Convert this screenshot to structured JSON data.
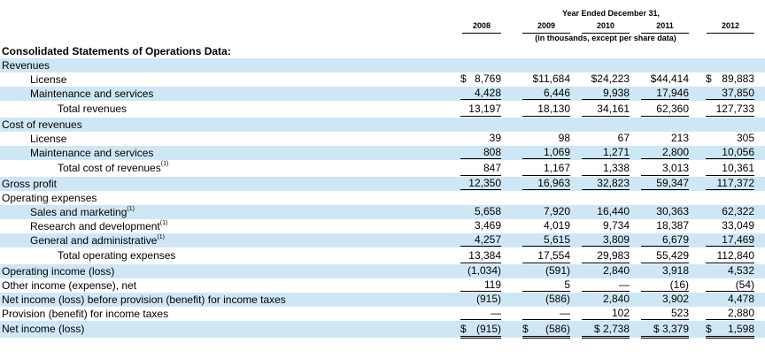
{
  "header": {
    "year_ended": "Year Ended December 31,",
    "subnote": "(in thousands, except per share data)",
    "years": [
      "2008",
      "2009",
      "2010",
      "2011",
      "2012"
    ]
  },
  "section_title": "Consolidated Statements of Operations Data:",
  "rows": [
    {
      "label": "Revenues",
      "indent": 0,
      "shaded": true,
      "values": []
    },
    {
      "label": "License",
      "indent": 1,
      "shaded": false,
      "dollar": true,
      "values": [
        "8,769",
        "$11,684",
        "$24,223",
        "$44,414",
        "89,883"
      ]
    },
    {
      "label": "Maintenance and services",
      "indent": 1,
      "shaded": true,
      "line": "single",
      "values": [
        "4,428",
        "6,446",
        "9,938",
        "17,946",
        "37,850"
      ]
    },
    {
      "label": "Total revenues",
      "indent": 2,
      "shaded": false,
      "total": true,
      "line": "single",
      "values": [
        "13,197",
        "18,130",
        "34,161",
        "62,360",
        "127,733"
      ]
    },
    {
      "label": "Cost of revenues",
      "indent": 0,
      "shaded": true,
      "values": []
    },
    {
      "label": "License",
      "indent": 1,
      "shaded": false,
      "values": [
        "39",
        "98",
        "67",
        "213",
        "305"
      ]
    },
    {
      "label": "Maintenance and services",
      "indent": 1,
      "shaded": true,
      "line": "single",
      "values": [
        "808",
        "1,069",
        "1,271",
        "2,800",
        "10,056"
      ]
    },
    {
      "label": "Total cost of revenues",
      "sup": "(1)",
      "indent": 2,
      "shaded": false,
      "total": true,
      "line": "single",
      "values": [
        "847",
        "1,167",
        "1,338",
        "3,013",
        "10,361"
      ]
    },
    {
      "label": "Gross profit",
      "indent": 0,
      "shaded": true,
      "line": "single",
      "values": [
        "12,350",
        "16,963",
        "32,823",
        "59,347",
        "117,372"
      ]
    },
    {
      "label": "Operating expenses",
      "indent": 0,
      "shaded": false,
      "values": []
    },
    {
      "label": "Sales and marketing",
      "sup": "(1)",
      "indent": 1,
      "shaded": true,
      "values": [
        "5,658",
        "7,920",
        "16,440",
        "30,363",
        "62,322"
      ]
    },
    {
      "label": "Research and development",
      "sup": "(1)",
      "indent": 1,
      "shaded": false,
      "values": [
        "3,469",
        "4,019",
        "9,734",
        "18,387",
        "33,049"
      ]
    },
    {
      "label": "General and administrative",
      "sup": "(1)",
      "indent": 1,
      "shaded": true,
      "line": "single",
      "values": [
        "4,257",
        "5,615",
        "3,809",
        "6,679",
        "17,469"
      ]
    },
    {
      "label": "Total operating expenses",
      "indent": 2,
      "shaded": false,
      "total": true,
      "line": "single",
      "values": [
        "13,384",
        "17,554",
        "29,983",
        "55,429",
        "112,840"
      ]
    },
    {
      "label": "Operating income (loss)",
      "indent": 0,
      "shaded": true,
      "values": [
        "(1,034)",
        "(591)",
        "2,840",
        "3,918",
        "4,532"
      ]
    },
    {
      "label": "Other income (expense), net",
      "indent": 0,
      "shaded": false,
      "line": "single",
      "values": [
        "119",
        "5",
        "—",
        "(16)",
        "(54)"
      ]
    },
    {
      "label": "Net income (loss) before provision (benefit) for income taxes",
      "indent": 0,
      "shaded": true,
      "values": [
        "(915)",
        "(586)",
        "2,840",
        "3,902",
        "4,478"
      ]
    },
    {
      "label": "Provision (benefit) for income taxes",
      "indent": 0,
      "shaded": false,
      "line": "single",
      "values": [
        "—",
        "—",
        "102",
        "523",
        "2,880"
      ]
    },
    {
      "label": "Net income (loss)",
      "indent": 0,
      "shaded": true,
      "total": true,
      "line": "double",
      "dollar": true,
      "values": [
        "(915)",
        "(586)",
        "$ 2,738",
        "$ 3,379",
        "1,598"
      ]
    }
  ]
}
